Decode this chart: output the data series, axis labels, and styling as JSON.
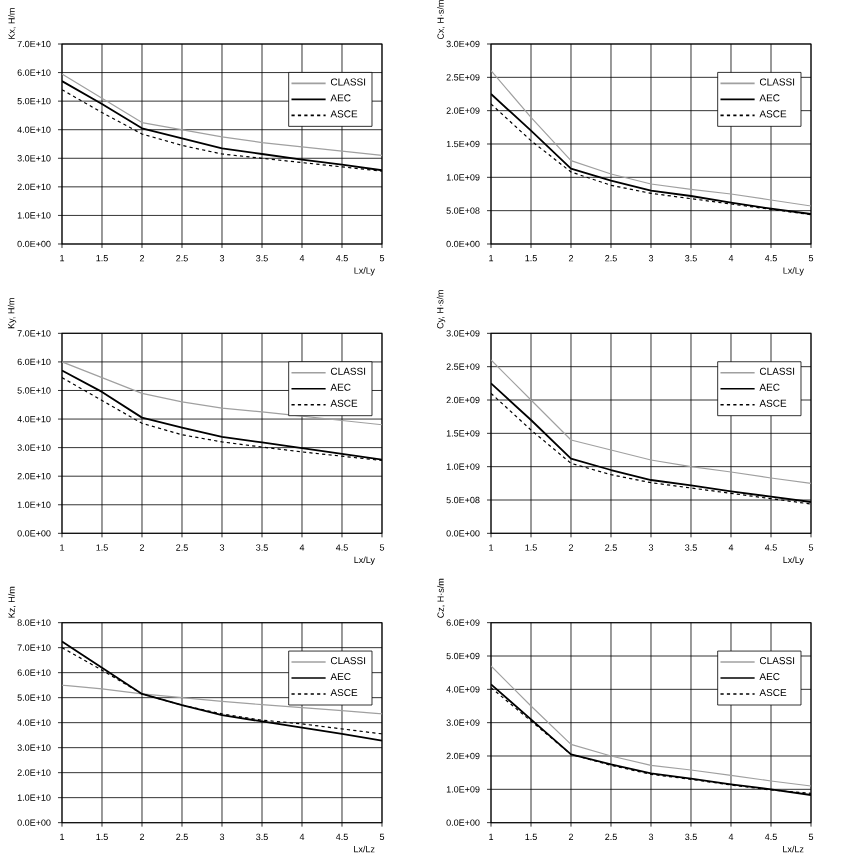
{
  "chart_data": [
    {
      "type": "line",
      "ylabel": "Kx, H/m",
      "xlabel": "Lx/Ly",
      "x": [
        1,
        1.5,
        2,
        2.5,
        3,
        3.5,
        4,
        4.5,
        5
      ],
      "xlim": [
        1,
        5
      ],
      "xticks": [
        1,
        1.5,
        2,
        2.5,
        3,
        3.5,
        4,
        4.5,
        5
      ],
      "ylim": [
        0,
        70000000000.0
      ],
      "yticks": [
        {
          "value": 0,
          "label": "0.0E+00"
        },
        {
          "value": 10000000000.0,
          "label": "1.0E+10"
        },
        {
          "value": 20000000000.0,
          "label": "2.0E+10"
        },
        {
          "value": 30000000000.0,
          "label": "3.0E+10"
        },
        {
          "value": 40000000000.0,
          "label": "4.0E+10"
        },
        {
          "value": 50000000000.0,
          "label": "5.0E+10"
        },
        {
          "value": 60000000000.0,
          "label": "6.0E+10"
        },
        {
          "value": 70000000000.0,
          "label": "7.0E+10"
        }
      ],
      "grid": true,
      "legend": "top right",
      "series": [
        {
          "name": "CLASSI",
          "color": "#a0a0a0",
          "line_style": "solid",
          "values": [
            59500000000.0,
            51000000000.0,
            42500000000.0,
            40000000000.0,
            37500000000.0,
            35500000000.0,
            34000000000.0,
            32500000000.0,
            31000000000.0
          ]
        },
        {
          "name": "AEC",
          "color": "#000000",
          "line_style": "solid",
          "values": [
            57000000000.0,
            49000000000.0,
            40500000000.0,
            37000000000.0,
            33500000000.0,
            31500000000.0,
            29500000000.0,
            27800000000.0,
            25800000000.0
          ]
        },
        {
          "name": "ASCE",
          "color": "#000000",
          "line_style": "dashed",
          "values": [
            54000000000.0,
            46000000000.0,
            38500000000.0,
            34500000000.0,
            31500000000.0,
            30000000000.0,
            28500000000.0,
            27000000000.0,
            25500000000.0
          ]
        }
      ]
    },
    {
      "type": "line",
      "ylabel": "Cx, H·s/m",
      "xlabel": "Lx/Ly",
      "x": [
        1,
        1.5,
        2,
        2.5,
        3,
        3.5,
        4,
        4.5,
        5
      ],
      "xlim": [
        1,
        5
      ],
      "xticks": [
        1,
        1.5,
        2,
        2.5,
        3,
        3.5,
        4,
        4.5,
        5
      ],
      "ylim": [
        0,
        3000000000.0
      ],
      "yticks": [
        {
          "value": 0,
          "label": "0.0E+00"
        },
        {
          "value": 500000000.0,
          "label": "5.0E+08"
        },
        {
          "value": 1000000000.0,
          "label": "1.0E+09"
        },
        {
          "value": 1500000000.0,
          "label": "1.5E+09"
        },
        {
          "value": 2000000000.0,
          "label": "2.0E+09"
        },
        {
          "value": 2500000000.0,
          "label": "2.5E+09"
        },
        {
          "value": 3000000000.0,
          "label": "3.0E+09"
        }
      ],
      "grid": true,
      "legend": "top right",
      "series": [
        {
          "name": "CLASSI",
          "color": "#a0a0a0",
          "line_style": "solid",
          "values": [
            2600000000.0,
            1900000000.0,
            1250000000.0,
            1050000000.0,
            900000000.0,
            820000000.0,
            750000000.0,
            660000000.0,
            570000000.0
          ]
        },
        {
          "name": "AEC",
          "color": "#000000",
          "line_style": "solid",
          "values": [
            2250000000.0,
            1700000000.0,
            1130000000.0,
            950000000.0,
            800000000.0,
            720000000.0,
            620000000.0,
            530000000.0,
            450000000.0
          ]
        },
        {
          "name": "ASCE",
          "color": "#000000",
          "line_style": "dashed",
          "values": [
            2100000000.0,
            1550000000.0,
            1080000000.0,
            880000000.0,
            760000000.0,
            680000000.0,
            600000000.0,
            520000000.0,
            440000000.0
          ]
        }
      ]
    },
    {
      "type": "line",
      "ylabel": "Ky, H/m",
      "xlabel": "Lx/Ly",
      "x": [
        1,
        1.5,
        2,
        2.5,
        3,
        3.5,
        4,
        4.5,
        5
      ],
      "xlim": [
        1,
        5
      ],
      "xticks": [
        1,
        1.5,
        2,
        2.5,
        3,
        3.5,
        4,
        4.5,
        5
      ],
      "ylim": [
        0,
        70000000000.0
      ],
      "yticks": [
        {
          "value": 0,
          "label": "0.0E+00"
        },
        {
          "value": 10000000000.0,
          "label": "1.0E+10"
        },
        {
          "value": 20000000000.0,
          "label": "2.0E+10"
        },
        {
          "value": 30000000000.0,
          "label": "3.0E+10"
        },
        {
          "value": 40000000000.0,
          "label": "4.0E+10"
        },
        {
          "value": 50000000000.0,
          "label": "5.0E+10"
        },
        {
          "value": 60000000000.0,
          "label": "6.0E+10"
        },
        {
          "value": 70000000000.0,
          "label": "7.0E+10"
        }
      ],
      "grid": true,
      "legend": "top right",
      "series": [
        {
          "name": "CLASSI",
          "color": "#a0a0a0",
          "line_style": "solid",
          "values": [
            60000000000.0,
            54500000000.0,
            49000000000.0,
            46000000000.0,
            43800000000.0,
            42500000000.0,
            41000000000.0,
            39500000000.0,
            38000000000.0
          ]
        },
        {
          "name": "AEC",
          "color": "#000000",
          "line_style": "solid",
          "values": [
            57000000000.0,
            49500000000.0,
            40500000000.0,
            37000000000.0,
            33800000000.0,
            31800000000.0,
            29800000000.0,
            27800000000.0,
            25800000000.0
          ]
        },
        {
          "name": "ASCE",
          "color": "#000000",
          "line_style": "dashed",
          "values": [
            54500000000.0,
            46500000000.0,
            38500000000.0,
            34500000000.0,
            32000000000.0,
            30200000000.0,
            28500000000.0,
            27000000000.0,
            25500000000.0
          ]
        }
      ]
    },
    {
      "type": "line",
      "ylabel": "Cy, H·s/m",
      "xlabel": "Lx/Ly",
      "x": [
        1,
        1.5,
        2,
        2.5,
        3,
        3.5,
        4,
        4.5,
        5
      ],
      "xlim": [
        1,
        5
      ],
      "xticks": [
        1,
        1.5,
        2,
        2.5,
        3,
        3.5,
        4,
        4.5,
        5
      ],
      "ylim": [
        0,
        3000000000.0
      ],
      "yticks": [
        {
          "value": 0,
          "label": "0.0E+00"
        },
        {
          "value": 500000000.0,
          "label": "5.0E+08"
        },
        {
          "value": 1000000000.0,
          "label": "1.0E+09"
        },
        {
          "value": 1500000000.0,
          "label": "1.5E+09"
        },
        {
          "value": 2000000000.0,
          "label": "2.0E+09"
        },
        {
          "value": 2500000000.0,
          "label": "2.5E+09"
        },
        {
          "value": 3000000000.0,
          "label": "3.0E+09"
        }
      ],
      "grid": true,
      "legend": "top right",
      "series": [
        {
          "name": "CLASSI",
          "color": "#a0a0a0",
          "line_style": "solid",
          "values": [
            2600000000.0,
            2000000000.0,
            1400000000.0,
            1250000000.0,
            1100000000.0,
            1000000000.0,
            920000000.0,
            830000000.0,
            750000000.0
          ]
        },
        {
          "name": "AEC",
          "color": "#000000",
          "line_style": "solid",
          "values": [
            2250000000.0,
            1700000000.0,
            1120000000.0,
            950000000.0,
            800000000.0,
            720000000.0,
            630000000.0,
            550000000.0,
            470000000.0
          ]
        },
        {
          "name": "ASCE",
          "color": "#000000",
          "line_style": "dashed",
          "values": [
            2100000000.0,
            1550000000.0,
            1050000000.0,
            880000000.0,
            760000000.0,
            680000000.0,
            600000000.0,
            520000000.0,
            440000000.0
          ]
        }
      ]
    },
    {
      "type": "line",
      "ylabel": "Kz, H/m",
      "xlabel": "Lx/Lz",
      "x": [
        1,
        1.5,
        2,
        2.5,
        3,
        3.5,
        4,
        4.5,
        5
      ],
      "xlim": [
        1,
        5
      ],
      "xticks": [
        1,
        1.5,
        2,
        2.5,
        3,
        3.5,
        4,
        4.5,
        5
      ],
      "ylim": [
        0,
        80000000000.0
      ],
      "yticks": [
        {
          "value": 0,
          "label": "0.0E+00"
        },
        {
          "value": 10000000000.0,
          "label": "1.0E+10"
        },
        {
          "value": 20000000000.0,
          "label": "2.0E+10"
        },
        {
          "value": 30000000000.0,
          "label": "3.0E+10"
        },
        {
          "value": 40000000000.0,
          "label": "4.0E+10"
        },
        {
          "value": 50000000000.0,
          "label": "5.0E+10"
        },
        {
          "value": 60000000000.0,
          "label": "6.0E+10"
        },
        {
          "value": 70000000000.0,
          "label": "7.0E+10"
        },
        {
          "value": 80000000000.0,
          "label": "8.0E+10"
        }
      ],
      "grid": true,
      "legend": "top right",
      "series": [
        {
          "name": "CLASSI",
          "color": "#a0a0a0",
          "line_style": "solid",
          "values": [
            55000000000.0,
            53500000000.0,
            51500000000.0,
            50000000000.0,
            48500000000.0,
            47200000000.0,
            46000000000.0,
            44800000000.0,
            43500000000.0
          ]
        },
        {
          "name": "AEC",
          "color": "#000000",
          "line_style": "solid",
          "values": [
            72500000000.0,
            62000000000.0,
            51500000000.0,
            47000000000.0,
            43000000000.0,
            40500000000.0,
            38000000000.0,
            35500000000.0,
            32800000000.0
          ]
        },
        {
          "name": "ASCE",
          "color": "#000000",
          "line_style": "dashed",
          "values": [
            70000000000.0,
            61000000000.0,
            51500000000.0,
            47000000000.0,
            43500000000.0,
            41000000000.0,
            39500000000.0,
            37500000000.0,
            35500000000.0
          ]
        }
      ]
    },
    {
      "type": "line",
      "ylabel": "Cz, H·s/m",
      "xlabel": "Lx/Lz",
      "x": [
        1,
        1.5,
        2,
        2.5,
        3,
        3.5,
        4,
        4.5,
        5
      ],
      "xlim": [
        1,
        5
      ],
      "xticks": [
        1,
        1.5,
        2,
        2.5,
        3,
        3.5,
        4,
        4.5,
        5
      ],
      "ylim": [
        0,
        6000000000.0
      ],
      "yticks": [
        {
          "value": 0,
          "label": "0.0E+00"
        },
        {
          "value": 1000000000.0,
          "label": "1.0E+09"
        },
        {
          "value": 2000000000.0,
          "label": "2.0E+09"
        },
        {
          "value": 3000000000.0,
          "label": "3.0E+09"
        },
        {
          "value": 4000000000.0,
          "label": "4.0E+09"
        },
        {
          "value": 5000000000.0,
          "label": "5.0E+09"
        },
        {
          "value": 6000000000.0,
          "label": "6.0E+09"
        }
      ],
      "grid": true,
      "legend": "top right",
      "series": [
        {
          "name": "CLASSI",
          "color": "#a0a0a0",
          "line_style": "solid",
          "values": [
            4700000000.0,
            3500000000.0,
            2350000000.0,
            2000000000.0,
            1720000000.0,
            1580000000.0,
            1420000000.0,
            1250000000.0,
            1100000000.0
          ]
        },
        {
          "name": "AEC",
          "color": "#000000",
          "line_style": "solid",
          "values": [
            4150000000.0,
            3100000000.0,
            2050000000.0,
            1750000000.0,
            1480000000.0,
            1320000000.0,
            1150000000.0,
            1000000000.0,
            830000000.0
          ]
        },
        {
          "name": "ASCE",
          "color": "#000000",
          "line_style": "dashed",
          "values": [
            4050000000.0,
            3050000000.0,
            2050000000.0,
            1720000000.0,
            1450000000.0,
            1300000000.0,
            1130000000.0,
            980000000.0,
            880000000.0
          ]
        }
      ]
    }
  ]
}
